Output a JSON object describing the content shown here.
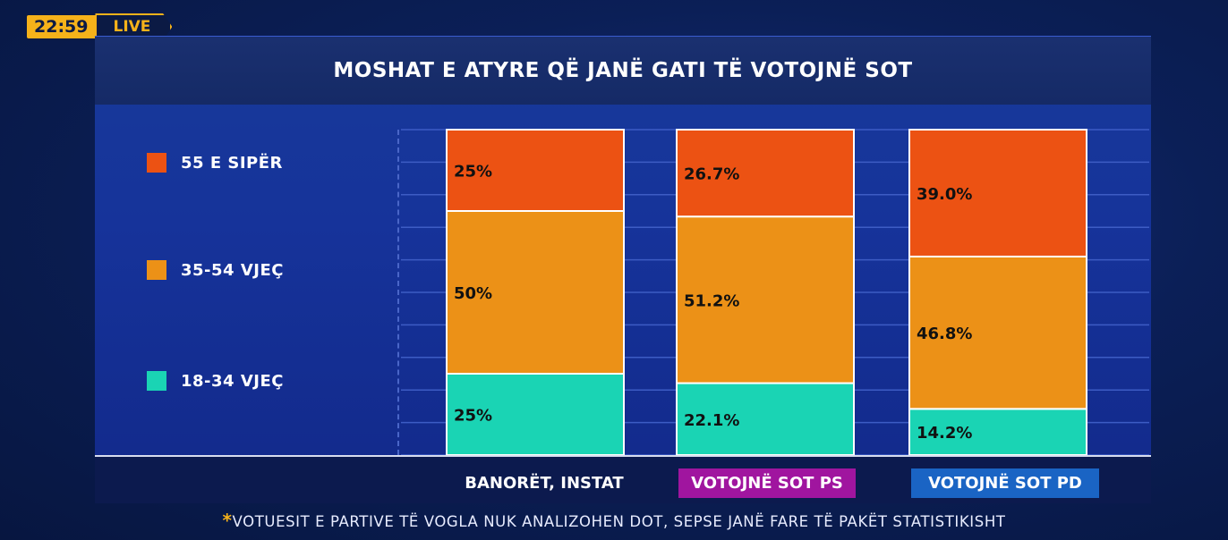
{
  "broadcast": {
    "time": "22:59",
    "live_label": "LIVE"
  },
  "title": "MOSHAT E ATYRE QË JANË GATI TË VOTOJNË SOT",
  "footnote": {
    "star": "*",
    "text": "VOTUESIT E PARTIVE TË VOGLA NUK ANALIZOHEN DOT, SEPSE JANË FARE TË PAKËT STATISTIKISHT"
  },
  "legend": [
    {
      "label": "55 E SIPËR",
      "color": "#ec5213"
    },
    {
      "label": "35-54 VJEÇ",
      "color": "#ec9117"
    },
    {
      "label": "18-34 VJEÇ",
      "color": "#1ad4b4"
    }
  ],
  "chart_data": {
    "type": "bar",
    "stacked": true,
    "title": "MOSHAT E ATYRE QË JANË GATI TË VOTOJNË SOT",
    "categories": [
      "BANORËT, INSTAT",
      "VOTOJNË SOT PS",
      "VOTOJNË SOT PD"
    ],
    "category_colors": [
      "",
      "#a0159f",
      "#1a64c4"
    ],
    "series": [
      {
        "name": "18-34 VJEÇ",
        "color": "#1ad4b4",
        "values": [
          25,
          22.1,
          14.2
        ],
        "labels": [
          "25%",
          "22.1%",
          "14.2%"
        ]
      },
      {
        "name": "35-54 VJEÇ",
        "color": "#ec9117",
        "values": [
          50,
          51.2,
          46.8
        ],
        "labels": [
          "50%",
          "51.2%",
          "46.8%"
        ]
      },
      {
        "name": "55 E SIPËR",
        "color": "#ec5213",
        "values": [
          25,
          26.7,
          39.0
        ],
        "labels": [
          "25%",
          "26.7%",
          "39.0%"
        ]
      }
    ],
    "ylim": [
      0,
      100
    ],
    "grid": true
  }
}
